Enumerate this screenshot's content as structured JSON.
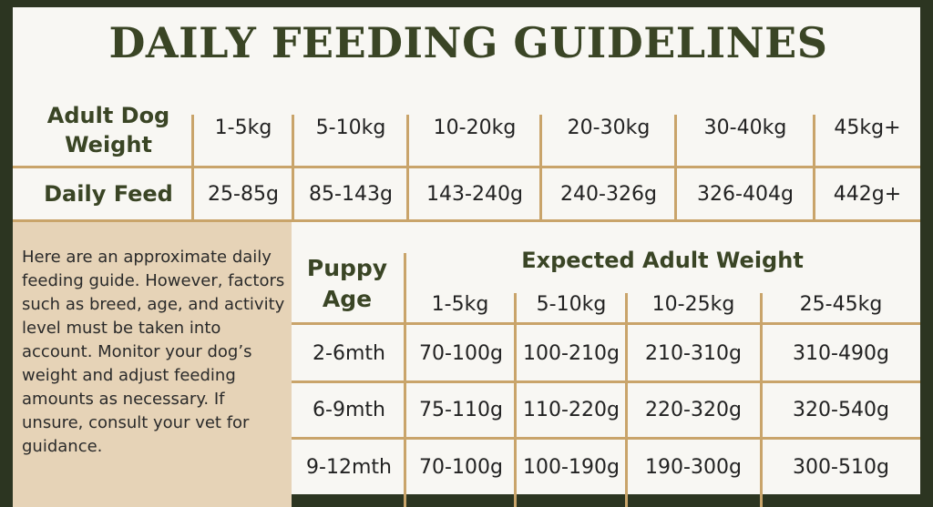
{
  "title": "DAILY FEEDING GUIDELINES",
  "adult": {
    "weight_header": "Adult Dog Weight",
    "feed_header": "Daily Feed",
    "weights": [
      "1-5kg",
      "5-10kg",
      "10-20kg",
      "20-30kg",
      "30-40kg",
      "45kg+"
    ],
    "feeds": [
      "25-85g",
      "85-143g",
      "143-240g",
      "240-326g",
      "326-404g",
      "442g+"
    ]
  },
  "note": "Here are an approximate daily feeding guide. However, factors such as breed, age, and activity level must be taken into account. Monitor your dog’s weight and adjust feeding amounts as necessary. If unsure, consult your vet for guidance.",
  "puppy": {
    "age_header": "Puppy Age",
    "expected_header": "Expected Adult Weight",
    "weights": [
      "1-5kg",
      "5-10kg",
      "10-25kg",
      "25-45kg"
    ],
    "rows": [
      {
        "age": "2-6mth",
        "values": [
          "70-100g",
          "100-210g",
          "210-310g",
          "310-490g"
        ]
      },
      {
        "age": "6-9mth",
        "values": [
          "75-110g",
          "110-220g",
          "220-320g",
          "320-540g"
        ]
      },
      {
        "age": "9-12mth",
        "values": [
          "70-100g",
          "100-190g",
          "190-300g",
          "300-510g"
        ]
      }
    ]
  }
}
